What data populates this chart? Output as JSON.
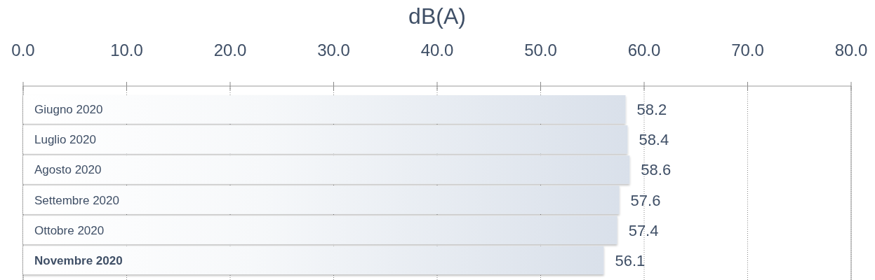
{
  "chart_data": {
    "type": "bar",
    "orientation": "horizontal",
    "xlabel": "dB(A)",
    "categories": [
      "Giugno 2020",
      "Luglio 2020",
      "Agosto 2020",
      "Settembre 2020",
      "Ottobre 2020",
      "Novembre 2020"
    ],
    "values": [
      58.2,
      58.4,
      58.6,
      57.6,
      57.4,
      56.1
    ],
    "color": "#d9e0ea",
    "xlim": [
      0,
      80
    ],
    "xticks": [
      {
        "value": 0,
        "label": "0.0"
      },
      {
        "value": 10,
        "label": "10.0"
      },
      {
        "value": 20,
        "label": "20.0"
      },
      {
        "value": 30,
        "label": "30.0"
      },
      {
        "value": 40,
        "label": "40.0"
      },
      {
        "value": 50,
        "label": "50.0"
      },
      {
        "value": 60,
        "label": "60.0"
      },
      {
        "value": 70,
        "label": "70.0"
      },
      {
        "value": 80,
        "label": "80.0"
      }
    ],
    "grid": "x",
    "data_labels": true
  }
}
